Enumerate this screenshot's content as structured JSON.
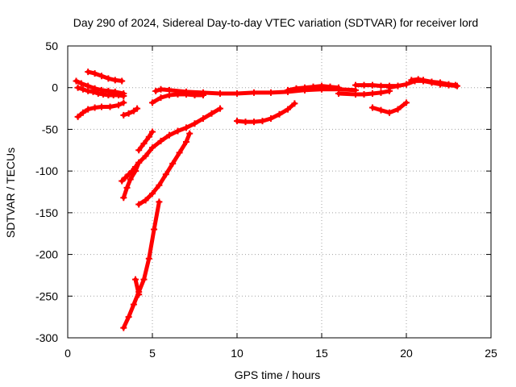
{
  "chart_data": {
    "type": "scatter",
    "title": "Day 290 of 2024, Sidereal Day-to-day VTEC variation (SDTVAR) for receiver lord",
    "xlabel": "GPS time / hours",
    "ylabel": "SDTVAR / TECUs",
    "xlim": [
      0,
      25
    ],
    "ylim": [
      -300,
      50
    ],
    "xticks": [
      "0",
      "5",
      "10",
      "15",
      "20",
      "25"
    ],
    "yticks": [
      "50",
      "0",
      "-50",
      "-100",
      "-150",
      "-200",
      "-250",
      "-300"
    ],
    "grid": true,
    "legend": "none",
    "marker": "+",
    "color": "#ff0000",
    "tracks": [
      {
        "x": [
          0.5,
          0.8,
          1.2,
          1.6,
          2.0,
          2.4,
          2.8,
          3.3
        ],
        "y": [
          8,
          5,
          2,
          -1,
          -3,
          -4,
          -5,
          -7
        ]
      },
      {
        "x": [
          1.2,
          1.6,
          2.0,
          2.4,
          2.8,
          3.2
        ],
        "y": [
          19,
          17,
          14,
          11,
          9,
          8
        ]
      },
      {
        "x": [
          0.6,
          0.9,
          1.2,
          1.5,
          1.8,
          2.1,
          2.4,
          2.7,
          3.0,
          3.3
        ],
        "y": [
          0,
          -2,
          -4,
          -5,
          -7,
          -8,
          -9,
          -9,
          -9,
          -10
        ]
      },
      {
        "x": [
          0.6,
          0.9,
          1.2,
          1.6,
          2.0,
          2.5,
          3.0,
          3.3
        ],
        "y": [
          -35,
          -30,
          -26,
          -24,
          -23,
          -23,
          -21,
          -18
        ]
      },
      {
        "x": [
          3.3,
          3.6,
          3.9,
          4.1
        ],
        "y": [
          -33,
          -31,
          -28,
          -25
        ]
      },
      {
        "x": [
          3.2,
          3.4,
          3.6,
          3.8,
          4.0
        ],
        "y": [
          -112,
          -108,
          -104,
          -100,
          -95
        ]
      },
      {
        "x": [
          3.3,
          3.5,
          3.7,
          4.0,
          4.2
        ],
        "y": [
          -132,
          -120,
          -110,
          -100,
          -90
        ]
      },
      {
        "x": [
          4.2,
          4.5,
          4.8,
          5.0
        ],
        "y": [
          -75,
          -67,
          -59,
          -53
        ]
      },
      {
        "x": [
          4.2,
          4.6,
          5.0,
          5.5,
          6.0,
          6.5,
          7.0,
          7.5,
          8.0,
          8.5,
          9.0
        ],
        "y": [
          -90,
          -82,
          -72,
          -64,
          -57,
          -52,
          -48,
          -43,
          -37,
          -31,
          -25
        ]
      },
      {
        "x": [
          4.2,
          4.6,
          5.0,
          5.4,
          5.8,
          6.2,
          6.6,
          7.0,
          7.2
        ],
        "y": [
          -140,
          -135,
          -127,
          -117,
          -104,
          -91,
          -78,
          -65,
          -55
        ]
      },
      {
        "x": [
          3.3,
          3.6,
          3.9,
          4.2,
          4.5,
          4.8,
          5.1,
          5.4
        ],
        "y": [
          -288,
          -275,
          -260,
          -245,
          -230,
          -205,
          -170,
          -137
        ]
      },
      {
        "x": [
          4.0,
          4.2
        ],
        "y": [
          -230,
          -248
        ]
      },
      {
        "x": [
          5.0,
          5.5,
          6.0,
          6.5,
          7.0,
          7.5,
          8.0
        ],
        "y": [
          -18,
          -12,
          -9,
          -8,
          -8,
          -9,
          -9
        ]
      },
      {
        "x": [
          5.2,
          5.5,
          6.0,
          7.0,
          8.0,
          9.0,
          10.0,
          11.0,
          12.0,
          13.0,
          14.0,
          15.0,
          16.0,
          17.0
        ],
        "y": [
          -4,
          -2,
          -3,
          -5,
          -6,
          -7,
          -7,
          -6,
          -6,
          -5,
          -3,
          -2,
          -2,
          -3
        ]
      },
      {
        "x": [
          10.0,
          10.5,
          11.0,
          11.5,
          12.0,
          12.5,
          13.0,
          13.4
        ],
        "y": [
          -40,
          -41,
          -41,
          -40,
          -37,
          -32,
          -26,
          -19
        ]
      },
      {
        "x": [
          13.0,
          13.5,
          14.0,
          14.5,
          15.0,
          15.5,
          16.0
        ],
        "y": [
          -3,
          -1,
          0,
          1,
          2,
          1,
          0
        ]
      },
      {
        "x": [
          16.0,
          17.0,
          17.5,
          18.0,
          18.5,
          19.0
        ],
        "y": [
          -7,
          -8,
          -8,
          -7,
          -6,
          -4
        ]
      },
      {
        "x": [
          17.0,
          17.5,
          18.0,
          18.5,
          19.0,
          19.5
        ],
        "y": [
          3,
          3,
          3,
          2,
          2,
          2
        ]
      },
      {
        "x": [
          18.0,
          18.5,
          19.0,
          19.5,
          20.0
        ],
        "y": [
          -24,
          -27,
          -30,
          -26,
          -18
        ]
      },
      {
        "x": [
          19.0,
          19.5,
          20.0,
          20.5,
          21.0,
          21.5,
          22.0,
          22.5,
          23.0
        ],
        "y": [
          0,
          2,
          4,
          8,
          8,
          6,
          4,
          3,
          2
        ]
      },
      {
        "x": [
          20.3,
          20.7,
          21.0,
          21.5,
          22.0,
          22.5,
          22.9
        ],
        "y": [
          9,
          10,
          9,
          7,
          6,
          4,
          3
        ]
      }
    ]
  }
}
